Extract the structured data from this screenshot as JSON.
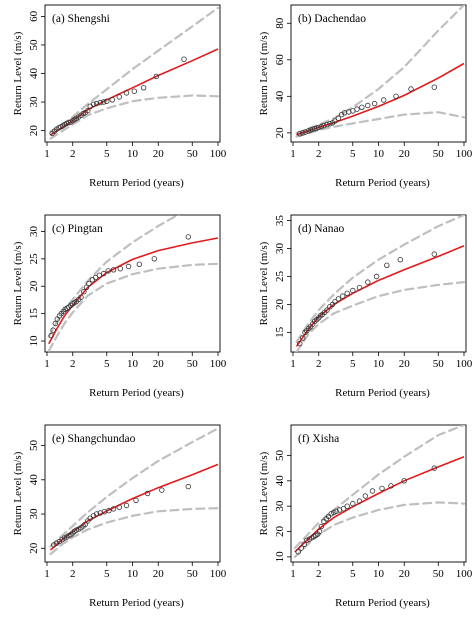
{
  "chart_data": [
    {
      "type": "line",
      "title": "(a) Shengshi",
      "xlabel": "Return Period (years)",
      "ylabel": "Return Level (m/s)",
      "x_scale": "log",
      "xlim": [
        1,
        100
      ],
      "ylim": [
        16,
        64
      ],
      "x_ticks": [
        1,
        2,
        5,
        10,
        20,
        50,
        100
      ],
      "y_ticks": [
        20,
        30,
        40,
        50,
        60
      ],
      "fit": {
        "x": [
          1.1,
          1.5,
          2,
          3,
          5,
          10,
          20,
          50,
          100
        ],
        "y": [
          18.5,
          21.0,
          23.5,
          27.3,
          30.8,
          35.0,
          39.3,
          44.5,
          48.6
        ]
      },
      "ci_upper": {
        "x": [
          1.1,
          1.5,
          2,
          3,
          5,
          10,
          20,
          50,
          100
        ],
        "y": [
          19.6,
          22.0,
          24.8,
          29.3,
          34.5,
          41.5,
          48.0,
          56.5,
          63.0
        ]
      },
      "ci_lower": {
        "x": [
          1.1,
          1.5,
          2,
          3,
          5,
          10,
          20,
          50,
          100
        ],
        "y": [
          17.2,
          19.8,
          22.2,
          25.4,
          27.8,
          30.3,
          31.5,
          32.3,
          32.0
        ]
      },
      "observed": {
        "x": [
          1.15,
          1.22,
          1.3,
          1.38,
          1.45,
          1.52,
          1.6,
          1.7,
          1.8,
          1.9,
          2.0,
          2.1,
          2.2,
          2.35,
          2.5,
          2.65,
          2.8,
          3.0,
          3.2,
          3.5,
          3.8,
          4.2,
          4.6,
          5.0,
          5.8,
          7.0,
          8.5,
          10.5,
          13.5,
          19.0,
          40.0
        ],
        "y": [
          19.0,
          19.8,
          20.5,
          21.0,
          21.3,
          21.6,
          22.1,
          22.5,
          22.8,
          23.0,
          23.5,
          23.9,
          24.3,
          24.8,
          25.4,
          26.0,
          26.3,
          27.0,
          28.5,
          29.2,
          29.5,
          29.8,
          30.0,
          30.3,
          30.8,
          31.8,
          33.2,
          33.8,
          35.0,
          39.0,
          45.0
        ]
      },
      "colors": {
        "fit": "#e31a1c",
        "ci": "#bfbfbf",
        "points": "#333333"
      }
    },
    {
      "type": "line",
      "title": "(b) Dachendao",
      "xlabel": "Return Period (years)",
      "ylabel": "Return Level (m/s)",
      "x_scale": "log",
      "xlim": [
        1,
        100
      ],
      "ylim": [
        15,
        90
      ],
      "x_ticks": [
        1,
        2,
        5,
        10,
        20,
        50,
        100
      ],
      "y_ticks": [
        20,
        40,
        60,
        80
      ],
      "fit": {
        "x": [
          1.1,
          1.5,
          2,
          3,
          5,
          10,
          20,
          50,
          100
        ],
        "y": [
          19.0,
          21.0,
          23.0,
          25.5,
          29.2,
          34.5,
          40.5,
          50.0,
          58.0
        ]
      },
      "ci_upper": {
        "x": [
          1.1,
          1.5,
          2,
          3,
          5,
          10,
          20,
          50,
          100
        ],
        "y": [
          20.0,
          22.2,
          24.5,
          28.0,
          34.0,
          44.0,
          56.0,
          76.0,
          90.0
        ]
      },
      "ci_lower": {
        "x": [
          1.1,
          1.5,
          2,
          3,
          5,
          10,
          20,
          50,
          100
        ],
        "y": [
          18.0,
          19.7,
          21.5,
          23.3,
          25.2,
          27.6,
          30.0,
          31.3,
          28.5
        ]
      },
      "observed": {
        "x": [
          1.2,
          1.3,
          1.4,
          1.5,
          1.6,
          1.7,
          1.8,
          1.9,
          2.0,
          2.15,
          2.3,
          2.5,
          2.7,
          2.9,
          3.1,
          3.4,
          3.7,
          4.0,
          4.5,
          5.0,
          5.6,
          6.4,
          7.5,
          9.0,
          11.5,
          16.0,
          24.0,
          45.0
        ],
        "y": [
          19.5,
          20.0,
          20.5,
          21.0,
          21.5,
          22.0,
          22.3,
          22.6,
          23.0,
          23.5,
          24.0,
          24.5,
          25.0,
          25.5,
          26.5,
          28.0,
          30.0,
          31.0,
          31.5,
          32.0,
          33.0,
          34.0,
          35.0,
          36.0,
          38.0,
          40.0,
          44.0,
          45.0
        ]
      },
      "colors": {
        "fit": "#e31a1c",
        "ci": "#bfbfbf",
        "points": "#333333"
      }
    },
    {
      "type": "line",
      "title": "(c) Pingtan",
      "xlabel": "Return Period (years)",
      "ylabel": "Return Level (m/s)",
      "x_scale": "log",
      "xlim": [
        1,
        100
      ],
      "ylim": [
        8,
        33
      ],
      "x_ticks": [
        1,
        2,
        5,
        10,
        20,
        50,
        100
      ],
      "y_ticks": [
        10,
        15,
        20,
        25,
        30
      ],
      "fit": {
        "x": [
          1.05,
          1.3,
          1.6,
          2,
          3,
          5,
          10,
          20,
          50,
          100
        ],
        "y": [
          9.5,
          12.2,
          14.6,
          16.5,
          19.8,
          22.5,
          24.9,
          26.5,
          27.9,
          28.8
        ]
      },
      "ci_upper": {
        "x": [
          1.05,
          1.3,
          1.6,
          2,
          3,
          5,
          10,
          20,
          50,
          100
        ],
        "y": [
          10.8,
          13.5,
          15.8,
          17.6,
          21.0,
          24.5,
          28.0,
          31.0,
          34.5,
          37.0
        ]
      },
      "ci_lower": {
        "x": [
          1.05,
          1.3,
          1.6,
          2,
          3,
          5,
          10,
          20,
          50,
          100
        ],
        "y": [
          8.2,
          10.8,
          13.2,
          15.2,
          18.3,
          20.5,
          22.2,
          23.2,
          23.9,
          24.1
        ]
      },
      "observed": {
        "x": [
          1.12,
          1.18,
          1.25,
          1.32,
          1.4,
          1.47,
          1.55,
          1.63,
          1.72,
          1.8,
          1.9,
          2.0,
          2.1,
          2.2,
          2.35,
          2.5,
          2.7,
          2.9,
          3.1,
          3.4,
          3.7,
          4.1,
          4.6,
          5.2,
          6.0,
          7.2,
          9.0,
          12.0,
          18.0,
          45.0
        ],
        "y": [
          11.0,
          12.0,
          13.2,
          14.0,
          14.6,
          15.0,
          15.4,
          15.8,
          16.0,
          16.2,
          16.5,
          16.8,
          17.0,
          17.2,
          17.6,
          18.0,
          19.0,
          19.8,
          20.5,
          21.2,
          21.6,
          22.0,
          22.3,
          22.8,
          23.0,
          23.2,
          23.6,
          24.0,
          25.0,
          29.0
        ]
      },
      "colors": {
        "fit": "#e31a1c",
        "ci": "#bfbfbf",
        "points": "#333333"
      }
    },
    {
      "type": "line",
      "title": "(d) Nanao",
      "xlabel": "Return Period (years)",
      "ylabel": "Return Level (m/s)",
      "x_scale": "log",
      "xlim": [
        1,
        100
      ],
      "ylim": [
        11.5,
        36
      ],
      "x_ticks": [
        1,
        2,
        5,
        10,
        20,
        50,
        100
      ],
      "y_ticks": [
        15,
        20,
        25,
        30,
        35
      ],
      "fit": {
        "x": [
          1.1,
          1.5,
          2,
          3,
          5,
          10,
          20,
          50,
          100
        ],
        "y": [
          12.5,
          15.5,
          17.8,
          20.0,
          22.0,
          24.3,
          26.2,
          28.6,
          30.5
        ]
      },
      "ci_upper": {
        "x": [
          1.1,
          1.5,
          2,
          3,
          5,
          10,
          20,
          50,
          100
        ],
        "y": [
          13.3,
          16.5,
          19.0,
          21.8,
          24.8,
          28.0,
          30.7,
          34.0,
          36.0
        ]
      },
      "ci_lower": {
        "x": [
          1.1,
          1.5,
          2,
          3,
          5,
          10,
          20,
          50,
          100
        ],
        "y": [
          11.5,
          14.6,
          16.5,
          18.4,
          19.8,
          21.5,
          22.6,
          23.5,
          24.0
        ]
      },
      "observed": {
        "x": [
          1.2,
          1.3,
          1.38,
          1.45,
          1.53,
          1.6,
          1.7,
          1.8,
          1.9,
          2.0,
          2.1,
          2.2,
          2.35,
          2.5,
          2.7,
          2.9,
          3.1,
          3.4,
          3.8,
          4.3,
          5.0,
          6.0,
          7.5,
          9.5,
          12.5,
          18.0,
          45.0
        ],
        "y": [
          13.0,
          14.0,
          15.0,
          15.3,
          15.7,
          16.0,
          16.5,
          17.0,
          17.3,
          17.6,
          18.0,
          18.2,
          18.6,
          19.0,
          19.6,
          20.0,
          20.5,
          21.0,
          21.5,
          22.0,
          22.5,
          23.0,
          24.0,
          25.0,
          27.0,
          28.0,
          29.0
        ]
      },
      "colors": {
        "fit": "#e31a1c",
        "ci": "#bfbfbf",
        "points": "#333333"
      }
    },
    {
      "type": "line",
      "title": "(e) Shangchundao",
      "xlabel": "Return Period (years)",
      "ylabel": "Return Level (m/s)",
      "x_scale": "log",
      "xlim": [
        1,
        100
      ],
      "ylim": [
        16,
        56
      ],
      "x_ticks": [
        1,
        2,
        5,
        10,
        20,
        50,
        100
      ],
      "y_ticks": [
        20,
        30,
        40,
        50
      ],
      "fit": {
        "x": [
          1.1,
          1.5,
          2,
          3,
          5,
          10,
          20,
          50,
          100
        ],
        "y": [
          19.5,
          22.5,
          24.8,
          28.0,
          30.9,
          34.5,
          37.7,
          41.5,
          44.5
        ]
      },
      "ci_upper": {
        "x": [
          1.1,
          1.5,
          2,
          3,
          5,
          10,
          20,
          50,
          100
        ],
        "y": [
          20.6,
          23.7,
          26.5,
          30.5,
          35.0,
          40.5,
          45.5,
          51.0,
          55.0
        ]
      },
      "ci_lower": {
        "x": [
          1.1,
          1.5,
          2,
          3,
          5,
          10,
          20,
          50,
          100
        ],
        "y": [
          18.3,
          21.1,
          23.2,
          25.5,
          27.5,
          29.5,
          30.8,
          31.5,
          31.7
        ]
      },
      "observed": {
        "x": [
          1.2,
          1.3,
          1.4,
          1.5,
          1.6,
          1.7,
          1.8,
          1.9,
          2.0,
          2.1,
          2.2,
          2.35,
          2.5,
          2.65,
          2.8,
          3.0,
          3.2,
          3.5,
          3.8,
          4.2,
          4.7,
          5.3,
          6.0,
          7.0,
          8.5,
          11.0,
          15.0,
          22.0,
          45.0
        ],
        "y": [
          21.0,
          21.5,
          22.0,
          22.5,
          23.0,
          23.3,
          23.7,
          24.0,
          24.5,
          25.0,
          25.3,
          25.6,
          26.0,
          26.5,
          27.0,
          28.0,
          28.8,
          29.5,
          30.0,
          30.3,
          30.7,
          31.0,
          31.5,
          32.0,
          32.5,
          34.0,
          36.0,
          37.0,
          38.0
        ]
      },
      "colors": {
        "fit": "#e31a1c",
        "ci": "#bfbfbf",
        "points": "#333333"
      }
    },
    {
      "type": "line",
      "title": "(f) Xisha",
      "xlabel": "Return Period (years)",
      "ylabel": "Return Level (m/s)",
      "x_scale": "log",
      "xlim": [
        1,
        100
      ],
      "ylim": [
        8,
        62
      ],
      "x_ticks": [
        1,
        2,
        5,
        10,
        20,
        50,
        100
      ],
      "y_ticks": [
        10,
        20,
        30,
        40,
        50
      ],
      "fit": {
        "x": [
          1.05,
          1.5,
          2,
          3,
          5,
          10,
          20,
          50,
          100
        ],
        "y": [
          12.0,
          17.0,
          21.0,
          25.5,
          29.8,
          35.0,
          40.0,
          45.5,
          49.5
        ]
      },
      "ci_upper": {
        "x": [
          1.05,
          1.5,
          2,
          3,
          5,
          10,
          20,
          50,
          100
        ],
        "y": [
          13.5,
          19.0,
          23.5,
          28.5,
          34.5,
          42.5,
          49.5,
          58.0,
          62.0
        ]
      },
      "ci_lower": {
        "x": [
          1.05,
          1.5,
          2,
          3,
          5,
          10,
          20,
          50,
          100
        ],
        "y": [
          10.0,
          15.0,
          18.8,
          22.6,
          25.5,
          28.5,
          30.5,
          31.5,
          31.0
        ]
      },
      "observed": {
        "x": [
          1.15,
          1.25,
          1.35,
          1.45,
          1.55,
          1.65,
          1.75,
          1.85,
          1.95,
          2.05,
          2.15,
          2.3,
          2.45,
          2.6,
          2.8,
          3.0,
          3.2,
          3.5,
          3.9,
          4.3,
          5.0,
          6.0,
          7.0,
          8.5,
          11.0,
          14.0,
          20.0,
          45.0
        ],
        "y": [
          12.0,
          13.5,
          15.0,
          16.5,
          17.0,
          17.5,
          18.0,
          18.5,
          19.0,
          20.0,
          22.0,
          24.0,
          25.0,
          26.0,
          27.0,
          27.5,
          28.0,
          28.5,
          29.0,
          30.0,
          31.0,
          32.0,
          34.0,
          36.0,
          37.0,
          38.0,
          40.0,
          45.0
        ]
      },
      "colors": {
        "fit": "#e31a1c",
        "ci": "#bfbfbf",
        "points": "#333333"
      }
    }
  ]
}
